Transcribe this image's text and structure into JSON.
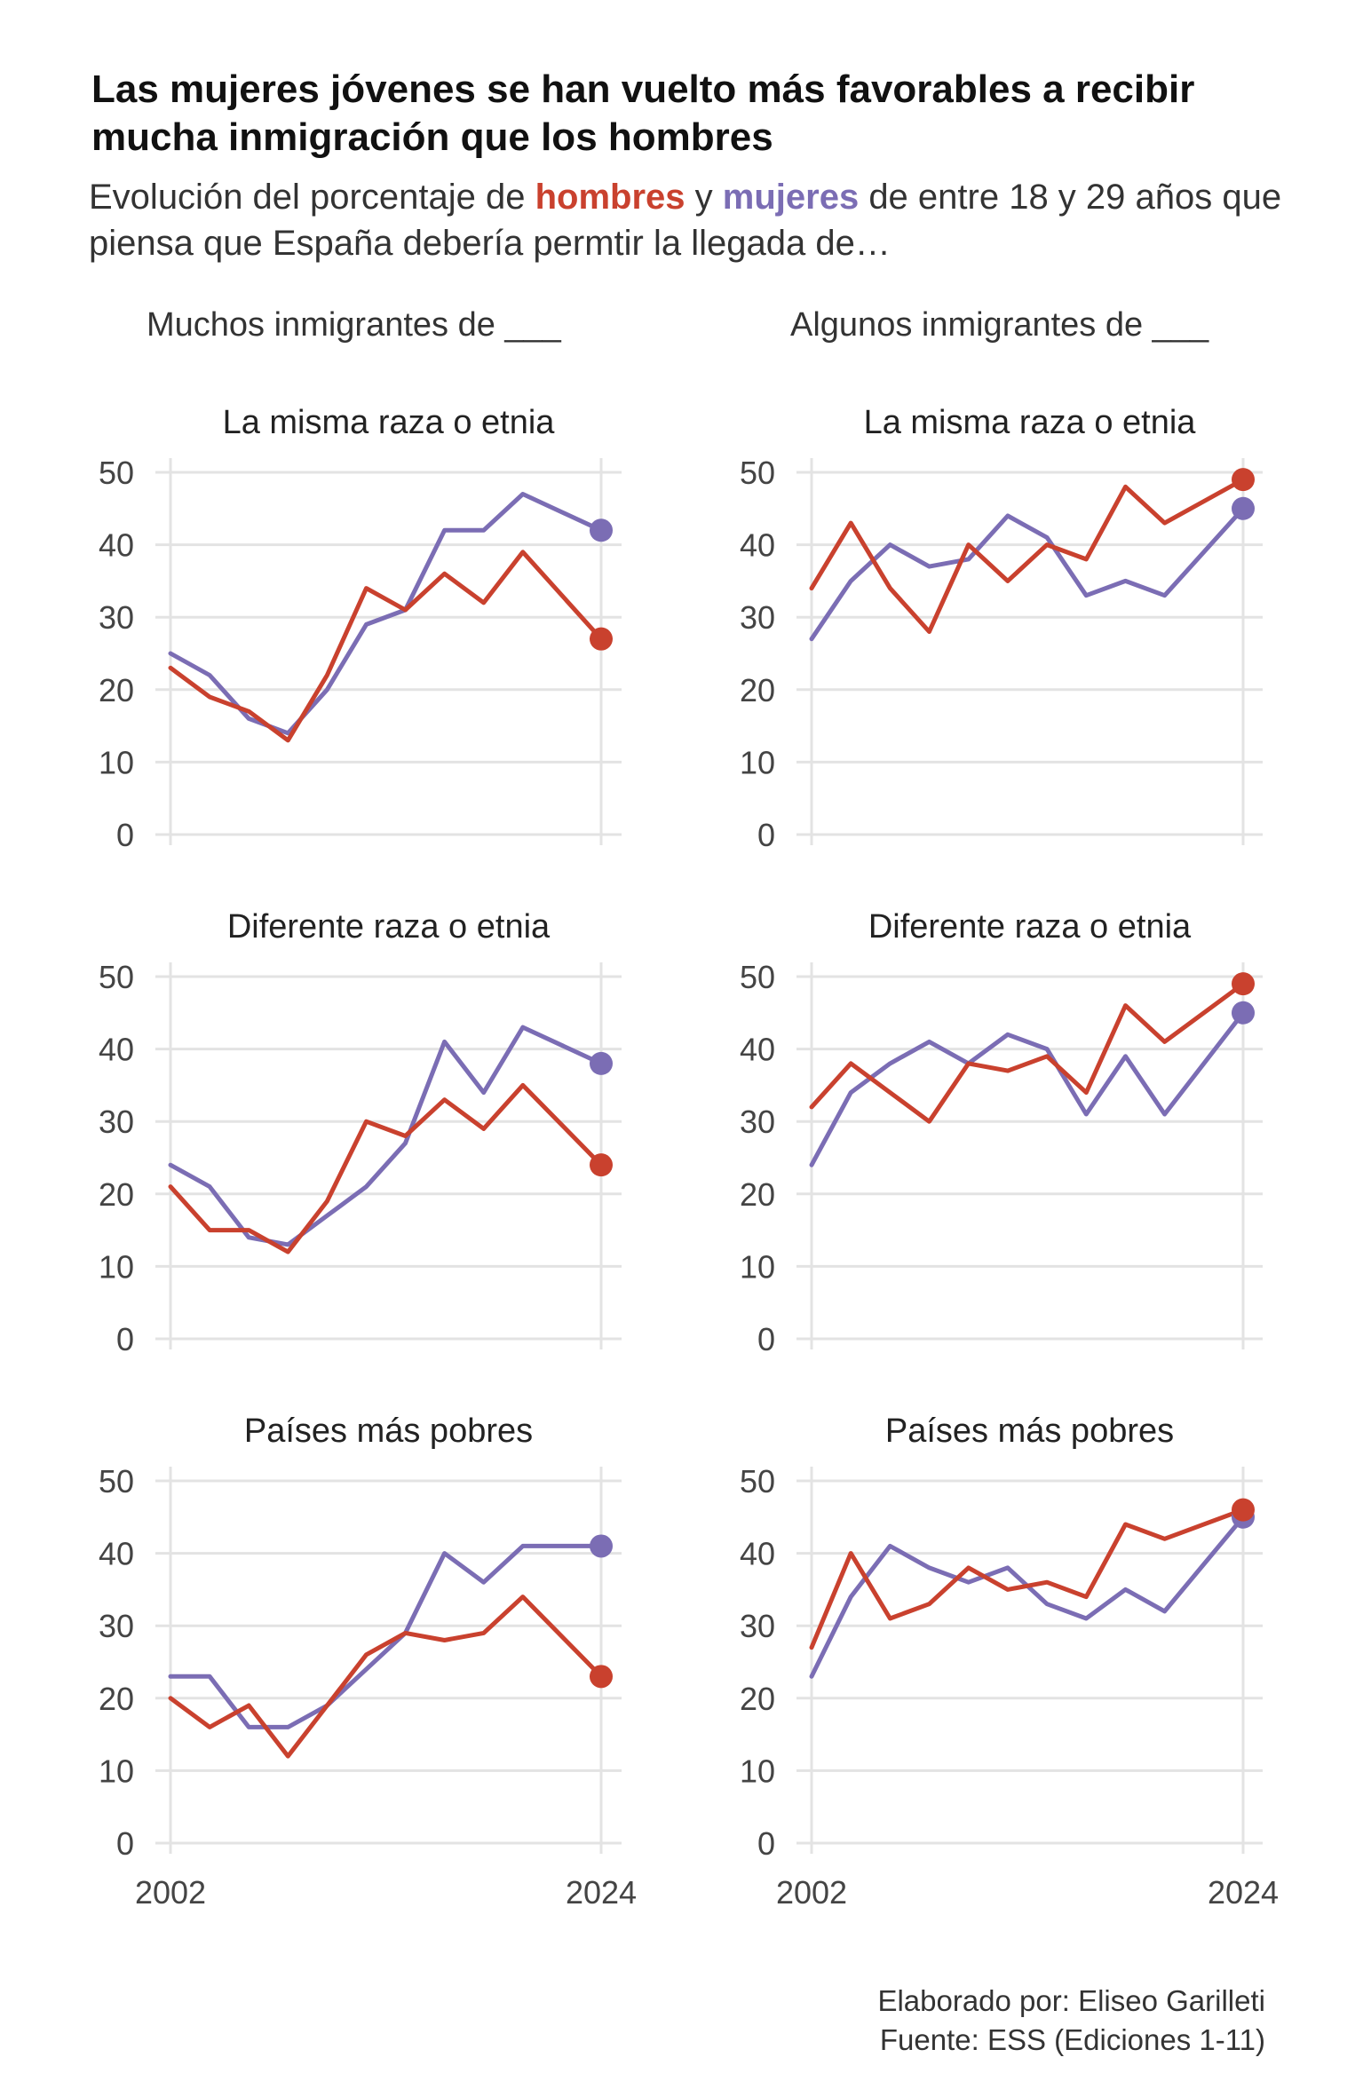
{
  "title": "Las mujeres jóvenes se han vuelto más favorables a recibir mucha inmigración que los hombres",
  "subtitle": {
    "pre": "Evolución del porcentaje de",
    "men_word": "hombres",
    "join": "y",
    "women_word": "mujeres",
    "post": "de entre 18 y 29 años que piensa que España debería permtir la llegada de…"
  },
  "columns": [
    "Muchos inmigrantes de ___",
    "Algunos inmigrantes de ___"
  ],
  "colors": {
    "men": "#c9412e",
    "women": "#7b6db4",
    "grid": "#e3e3e3",
    "axis_text": "#444444"
  },
  "footer": {
    "author": "Elaborado por: Eliseo Garilleti",
    "source": "Fuente: ESS (Ediciones 1-11)"
  },
  "chart_data": {
    "type": "line",
    "x_ticks": [
      "2002",
      "2024"
    ],
    "y_ticks": [
      0,
      10,
      20,
      30,
      40,
      50
    ],
    "ylim": [
      0,
      50
    ],
    "x": [
      2002,
      2004,
      2006,
      2008,
      2010,
      2012,
      2014,
      2016,
      2018,
      2020,
      2022,
      2024
    ],
    "series_names": {
      "men": "hombres",
      "women": "mujeres"
    },
    "panels": [
      {
        "column": 0,
        "title": "La misma raza o etnia",
        "men": [
          23,
          19,
          17,
          13,
          22,
          34,
          31,
          36,
          32,
          39,
          null,
          27
        ],
        "women": [
          25,
          22,
          16,
          14,
          20,
          29,
          31,
          42,
          42,
          47,
          null,
          42
        ]
      },
      {
        "column": 1,
        "title": "La misma raza o etnia",
        "men": [
          34,
          43,
          34,
          28,
          40,
          35,
          40,
          38,
          48,
          43,
          null,
          49
        ],
        "women": [
          27,
          35,
          40,
          37,
          38,
          44,
          41,
          33,
          35,
          33,
          null,
          45
        ]
      },
      {
        "column": 0,
        "title": "Diferente raza o etnia",
        "men": [
          21,
          15,
          15,
          12,
          19,
          30,
          28,
          33,
          29,
          35,
          null,
          24
        ],
        "women": [
          24,
          21,
          14,
          13,
          17,
          21,
          27,
          41,
          34,
          43,
          null,
          38
        ]
      },
      {
        "column": 1,
        "title": "Diferente raza o etnia",
        "men": [
          32,
          38,
          34,
          30,
          38,
          37,
          39,
          34,
          46,
          41,
          null,
          49
        ],
        "women": [
          24,
          34,
          38,
          41,
          38,
          42,
          40,
          31,
          39,
          31,
          null,
          45
        ]
      },
      {
        "column": 0,
        "title": "Países más pobres",
        "men": [
          20,
          16,
          19,
          12,
          19,
          26,
          29,
          28,
          29,
          34,
          null,
          23
        ],
        "women": [
          23,
          23,
          16,
          16,
          19,
          24,
          29,
          40,
          36,
          41,
          null,
          41
        ]
      },
      {
        "column": 1,
        "title": "Países más pobres",
        "men": [
          27,
          40,
          31,
          33,
          38,
          35,
          36,
          34,
          44,
          42,
          null,
          46
        ],
        "women": [
          23,
          34,
          41,
          38,
          36,
          38,
          33,
          31,
          35,
          32,
          null,
          45
        ]
      }
    ]
  }
}
